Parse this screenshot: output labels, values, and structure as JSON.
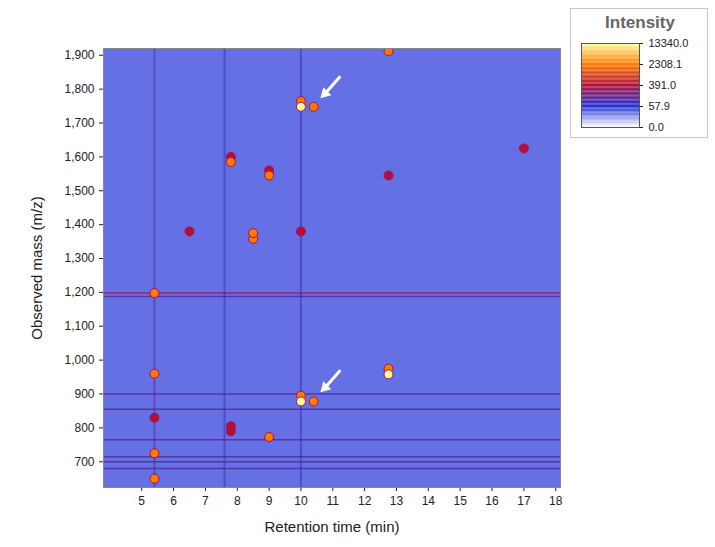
{
  "chart_data": {
    "type": "heatmap",
    "x_label": "Retention time (min)",
    "y_label": "Observed mass (m/z)",
    "xlim": [
      3.8,
      18.15
    ],
    "xticks": [
      5,
      6,
      7,
      8,
      9,
      10,
      11,
      12,
      13,
      14,
      15,
      16,
      17,
      18
    ],
    "ylim": [
      624,
      1920
    ],
    "yticks": [
      700,
      800,
      900,
      1000,
      1100,
      1200,
      1300,
      1400,
      1500,
      1600,
      1700,
      1800,
      1900
    ],
    "background_intensity": 40,
    "spots": {
      "x": [
        10.0,
        10.0,
        10.4,
        10.0,
        10.0,
        10.4,
        7.8,
        7.8,
        8.5,
        8.5,
        9.0,
        9.0,
        10.0,
        12.75,
        12.75,
        12.75,
        12.75,
        9.0,
        7.8,
        7.8,
        5.4,
        5.4,
        5.4,
        5.4,
        5.4,
        6.5,
        17.0
      ],
      "y": [
        1748,
        1765,
        1748,
        878,
        895,
        878,
        1585,
        1600,
        1358,
        1375,
        1545,
        1560,
        1380,
        958,
        975,
        1912,
        1545,
        773,
        790,
        805,
        960,
        1198,
        650,
        725,
        830,
        1380,
        1625
      ],
      "intensity": [
        13340,
        2308,
        2308,
        13340,
        2308,
        2308,
        2308,
        391,
        2308,
        2308,
        2308,
        391,
        391,
        13340,
        2308,
        2308,
        391,
        2308,
        391,
        391,
        2308,
        2308,
        2308,
        2308,
        391,
        391,
        391
      ]
    },
    "horizontal_streaks": {
      "y": [
        1198,
        1188,
        900,
        855,
        765,
        715,
        700,
        680
      ],
      "intensity": [
        391,
        200,
        200,
        200,
        200,
        200,
        200,
        200
      ]
    },
    "vertical_streaks": {
      "x": [
        5.4,
        7.6,
        10.0
      ],
      "intensity": [
        200,
        120,
        120
      ]
    },
    "arrows": {
      "x": [
        10.5,
        10.5
      ],
      "y": [
        1760,
        892
      ]
    },
    "colorbar": {
      "title": "Intensity",
      "range": [
        0,
        13340
      ],
      "ticks": [
        {
          "value": 0,
          "label": "0.0"
        },
        57.9,
        {
          "value": 391,
          "label": "391.0"
        },
        2308.1,
        {
          "value": 13340,
          "label": "13340.0"
        }
      ],
      "colors": [
        "#ffffff",
        "#1f30d6",
        "#b0103a",
        "#ff7a00",
        "#ffffa0"
      ]
    }
  }
}
